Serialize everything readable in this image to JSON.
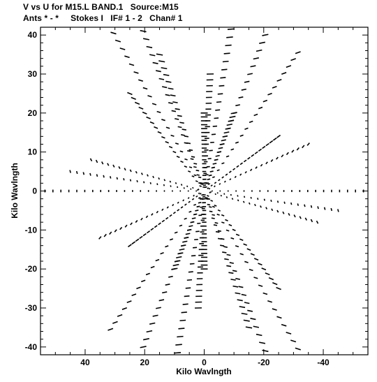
{
  "header": {
    "line1": "V vs U for M15.L BAND.1   Source:M15",
    "line2": "Ants * - *     Stokes I   IF# 1 - 2   Chan# 1"
  },
  "chart_data": {
    "type": "scatter",
    "title": "V vs U for M15.L BAND.1   Source:M15",
    "subtitle": "Ants * - *     Stokes I   IF# 1 - 2   Chan# 1",
    "xlabel": "Kilo Wavlngth",
    "ylabel": "Kilo Wavlngth",
    "xlim": [
      55,
      -55
    ],
    "ylim": [
      -42,
      42
    ],
    "x_ticks": [
      40,
      20,
      0,
      -20,
      -40
    ],
    "x_tick_labels": [
      "40",
      "20",
      "0",
      "-20",
      "-40"
    ],
    "y_ticks": [
      -40,
      -30,
      -20,
      -10,
      0,
      10,
      20,
      30,
      40
    ],
    "y_tick_labels": [
      "-40",
      "-30",
      "-20",
      "-10",
      "0",
      "10",
      "20",
      "30",
      "40"
    ],
    "grid": false,
    "arms": [
      {
        "end": [
          30.5,
          40.5
        ]
      },
      {
        "end": [
          20.5,
          41.0
        ]
      },
      {
        "end": [
          -9.0,
          41.5
        ]
      },
      {
        "end": [
          -20.5,
          40.0
        ]
      },
      {
        "end": [
          -31.5,
          35.5
        ]
      },
      {
        "end": [
          -53.5,
          0.0
        ]
      },
      {
        "end": [
          -45.0,
          -5.0
        ]
      },
      {
        "end": [
          -31.5,
          -40.5
        ]
      },
      {
        "end": [
          -20.5,
          -41.0
        ]
      },
      {
        "end": [
          9.0,
          -41.5
        ]
      },
      {
        "end": [
          20.5,
          -40.0
        ]
      },
      {
        "end": [
          31.5,
          -35.5
        ]
      },
      {
        "end": [
          53.5,
          0.0
        ]
      },
      {
        "end": [
          45.0,
          5.0
        ]
      },
      {
        "end": [
          0.0,
          20.0
        ]
      },
      {
        "end": [
          0.0,
          -20.0
        ]
      },
      {
        "end": [
          -25.0,
          14.0
        ]
      },
      {
        "end": [
          25.0,
          -14.0
        ]
      },
      {
        "end": [
          -2.0,
          30.0
        ]
      },
      {
        "end": [
          2.0,
          -30.0
        ]
      },
      {
        "end": [
          -10.0,
          20.0
        ]
      },
      {
        "end": [
          10.0,
          -20.0
        ]
      },
      {
        "end": [
          38.0,
          8.0
        ]
      },
      {
        "end": [
          -38.0,
          -8.0
        ]
      },
      {
        "end": [
          35.0,
          -12.0
        ]
      },
      {
        "end": [
          -35.0,
          12.0
        ]
      },
      {
        "end": [
          15.0,
          35.0
        ]
      },
      {
        "end": [
          -15.0,
          -35.0
        ]
      },
      {
        "end": [
          25.0,
          25.0
        ]
      },
      {
        "end": [
          -25.0,
          -25.0
        ]
      }
    ]
  }
}
